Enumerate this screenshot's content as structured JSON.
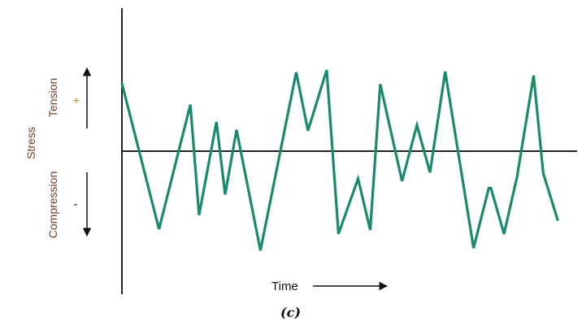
{
  "figure": {
    "stress_label": "Stress",
    "tension_label": "Tension",
    "compression_label": "Compression",
    "plus_sign": "+",
    "minus_sign": "-",
    "time_label": "Time",
    "panel_label": "(c)",
    "colors": {
      "waveform": "#1a8a6e",
      "axes": "#222222",
      "label_text": "#7a3a2a"
    }
  },
  "chart_data": {
    "type": "line",
    "title": "",
    "xlabel": "Time",
    "ylabel": "Stress",
    "grid": false,
    "legend": "none",
    "xlim": [
      0,
      1
    ],
    "ylim": [
      -1.2,
      1.1
    ],
    "note_scale": "stress in arbitrary units: +1 = peak tension, -1 = peak compression",
    "series": [
      {
        "x": [
          0.0,
          0.085,
          0.157,
          0.177,
          0.217,
          0.237,
          0.263,
          0.318,
          0.4,
          0.427,
          0.47,
          0.497,
          0.542,
          0.57,
          0.593,
          0.643,
          0.677,
          0.707,
          0.742,
          0.807,
          0.842,
          0.847,
          0.877,
          0.907,
          0.945,
          0.967,
          1.0
        ],
        "y": [
          0.86,
          -0.99,
          0.59,
          -0.81,
          0.37,
          -0.55,
          0.27,
          -1.26,
          1.0,
          0.26,
          1.03,
          -1.05,
          -0.35,
          -1.0,
          0.85,
          -0.38,
          0.33,
          -0.27,
          1.01,
          -1.23,
          -0.47,
          -0.47,
          -1.05,
          -0.32,
          0.96,
          -0.28,
          -0.87
        ]
      }
    ]
  }
}
